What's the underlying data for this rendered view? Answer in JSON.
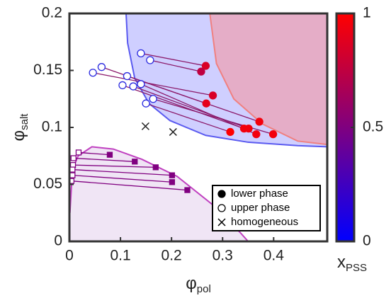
{
  "chart_data": {
    "type": "scatter",
    "xlabel": "φ",
    "xlabel_sub": "pol",
    "ylabel": "φ",
    "ylabel_sub": "salt",
    "xlim": [
      0,
      0.505
    ],
    "ylim": [
      0,
      0.2
    ],
    "xticks": [
      0,
      0.1,
      0.2,
      0.3,
      0.4
    ],
    "yticks": [
      0,
      0.05,
      0.1,
      0.15,
      0.2
    ],
    "binodals": [
      {
        "stroke": "#5a5af0",
        "fill": "rgba(110,110,255,0.33)",
        "fill_side": "above",
        "x": [
          0.111,
          0.114,
          0.128,
          0.156,
          0.197,
          0.267,
          0.35,
          0.447,
          0.505
        ],
        "y": [
          0.2,
          0.174,
          0.143,
          0.121,
          0.106,
          0.093,
          0.087,
          0.084,
          0.083
        ]
      },
      {
        "stroke": "#f08080",
        "fill": "rgba(255,130,130,0.45)",
        "fill_side": "above",
        "x": [
          0.275,
          0.288,
          0.322,
          0.378,
          0.447,
          0.505
        ],
        "y": [
          0.2,
          0.156,
          0.125,
          0.103,
          0.088,
          0.085
        ]
      },
      {
        "stroke": "#c040c0",
        "fill": "rgba(200,160,220,0.28)",
        "fill_side": "below",
        "x": [
          0.001,
          0.006,
          0.017,
          0.044,
          0.086,
          0.142,
          0.211,
          0.281,
          0.336,
          0.35
        ],
        "y": [
          0.025,
          0.063,
          0.075,
          0.083,
          0.081,
          0.072,
          0.057,
          0.032,
          0.007,
          0
        ]
      }
    ],
    "tie_sets": [
      {
        "line_color": "#8b1a6b",
        "lower": {
          "name": "lower phase",
          "marker": "circle",
          "x": [
            0.267,
            0.258,
            0.281,
            0.268,
            0.372,
            0.342,
            0.351,
            0.366,
            0.399,
            0.315
          ],
          "y": [
            0.154,
            0.149,
            0.128,
            0.121,
            0.105,
            0.099,
            0.099,
            0.094,
            0.094,
            0.096
          ],
          "x_pss": [
            0.85,
            0.75,
            0.85,
            0.9,
            0.95,
            0.95,
            0.95,
            0.95,
            0.95,
            1
          ]
        },
        "upper": {
          "name": "upper phase",
          "marker": "circle",
          "color": "#2a2ae0",
          "x": [
            0.14,
            0.158,
            0.046,
            0.063,
            0.113,
            0.104,
            0.125,
            0.14,
            0.164,
            0.15
          ],
          "y": [
            0.165,
            0.159,
            0.148,
            0.153,
            0.145,
            0.137,
            0.136,
            0.138,
            0.125,
            0.121
          ]
        }
      },
      {
        "line_color": "#800080",
        "lower": {
          "marker": "square",
          "color": "#800080",
          "x": [
            0.079,
            0.128,
            0.169,
            0.201,
            0.201,
            0.231
          ],
          "y": [
            0.076,
            0.07,
            0.065,
            0.058,
            0.052,
            0.045
          ]
        },
        "upper": {
          "marker": "square",
          "color": "#800080",
          "x": [
            0.018,
            0.008,
            0.007,
            0.006,
            0.006,
            0.004
          ],
          "y": [
            0.078,
            0.073,
            0.067,
            0.063,
            0.058,
            0.053
          ]
        }
      }
    ],
    "homogeneous": {
      "name": "homogeneous",
      "marker": "cross",
      "color": "#222",
      "x": [
        0.149,
        0.203
      ],
      "y": [
        0.101,
        0.096
      ]
    },
    "colorbar": {
      "label": "x",
      "label_sub": "PSS",
      "lim": [
        0,
        1
      ],
      "ticks": [
        0,
        0.5,
        1
      ],
      "colors": [
        "#0000ff",
        "#ff0000"
      ]
    }
  }
}
